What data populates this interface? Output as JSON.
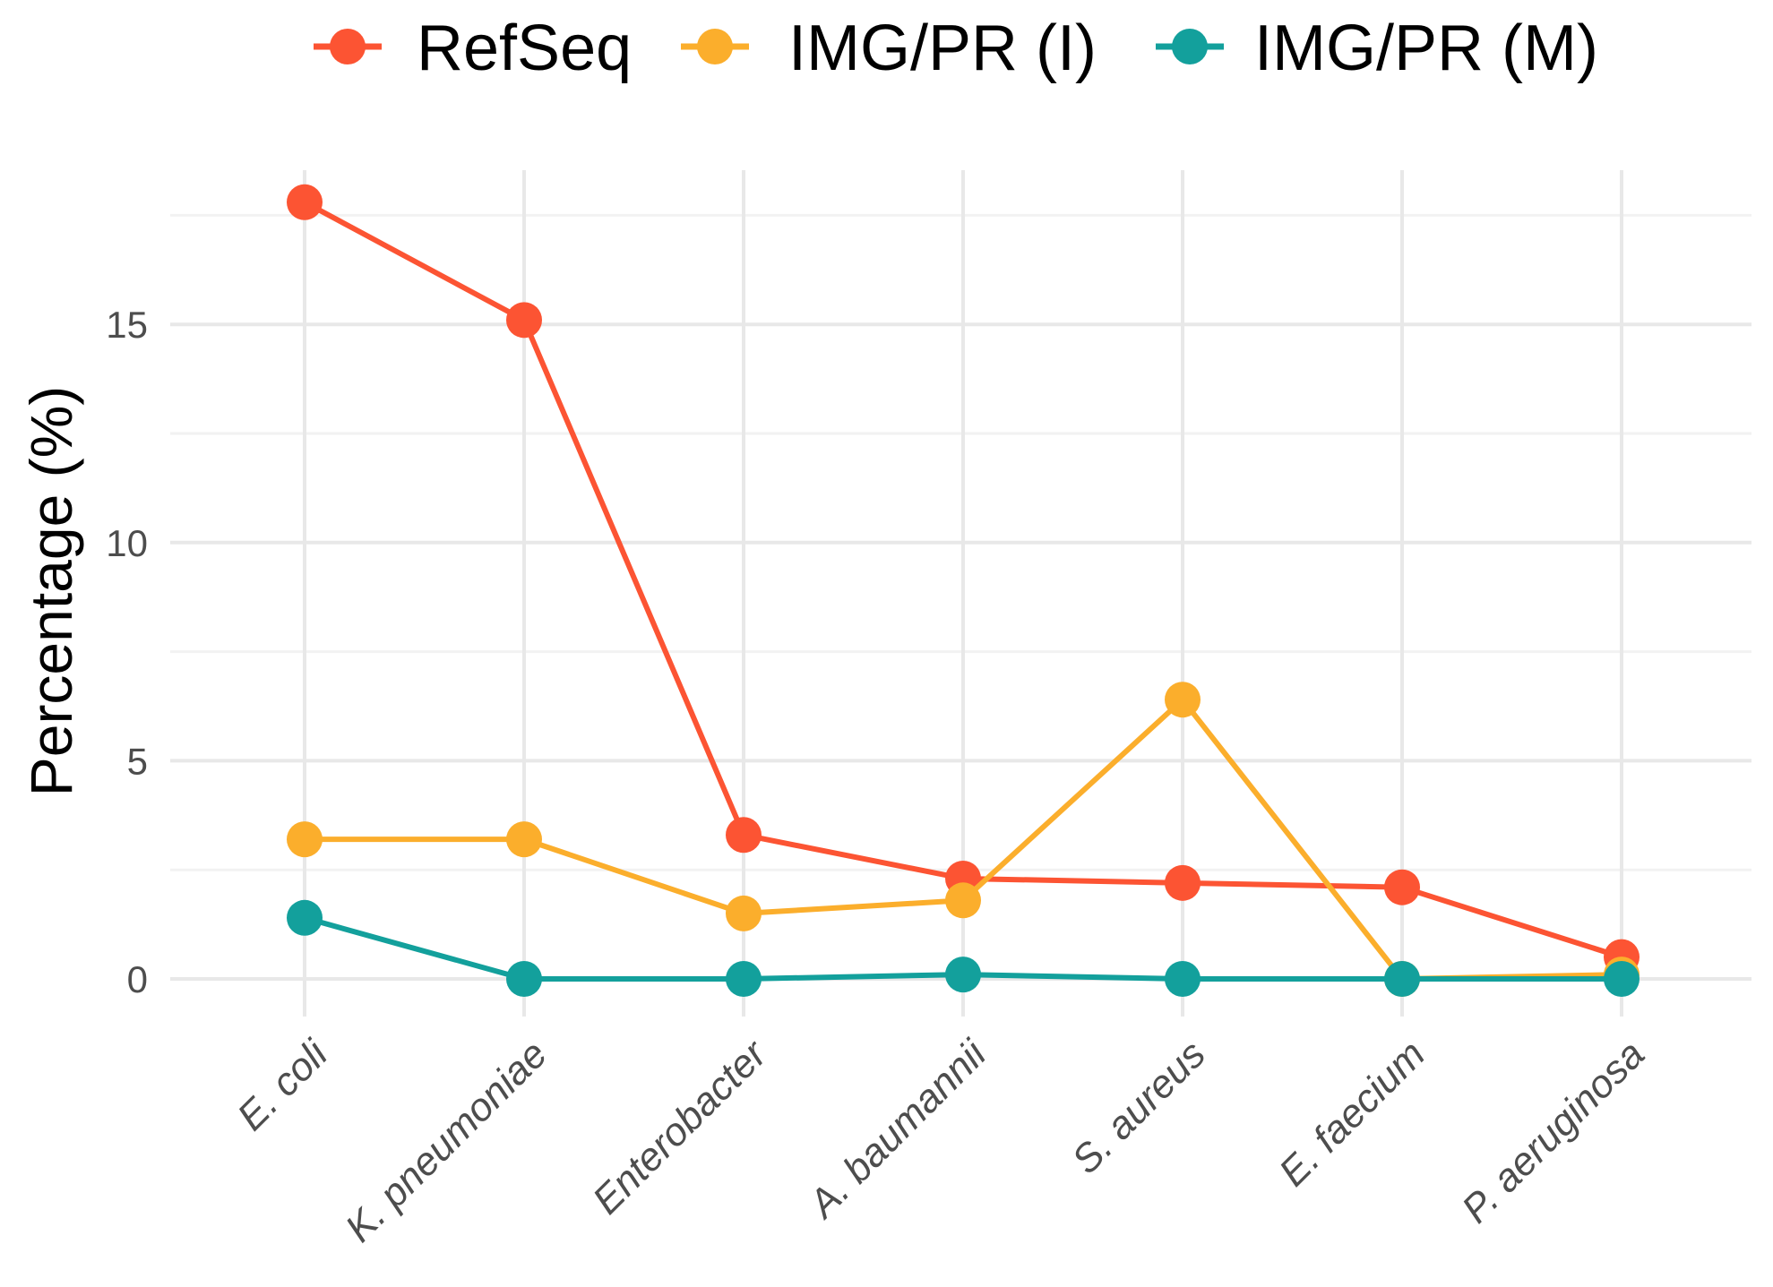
{
  "chart_data": {
    "type": "line",
    "title": "",
    "xlabel": "",
    "ylabel": "Percentage (%)",
    "categories": [
      "E. coli",
      "K. pneumoniae",
      "Enterobacter",
      "A. baumannii",
      "S. aureus",
      "E. faecium",
      "P. aeruginosa"
    ],
    "ylim": [
      -0.6,
      18.3
    ],
    "yticks": [
      0,
      5,
      10,
      15
    ],
    "ytick_labels": [
      "0",
      "5",
      "10",
      "15"
    ],
    "grid": true,
    "legend_position": "top",
    "series": [
      {
        "name": "RefSeq",
        "color": "#fc5433",
        "values": [
          17.8,
          15.1,
          3.3,
          2.3,
          2.2,
          2.1,
          0.5
        ]
      },
      {
        "name": "IMG/PR (I)",
        "color": "#fbae2c",
        "values": [
          3.2,
          3.2,
          1.5,
          1.8,
          6.4,
          0.0,
          0.1
        ]
      },
      {
        "name": "IMG/PR (M)",
        "color": "#13a09c",
        "values": [
          1.4,
          0.0,
          0.0,
          0.1,
          0.0,
          0.0,
          0.0
        ]
      }
    ]
  }
}
